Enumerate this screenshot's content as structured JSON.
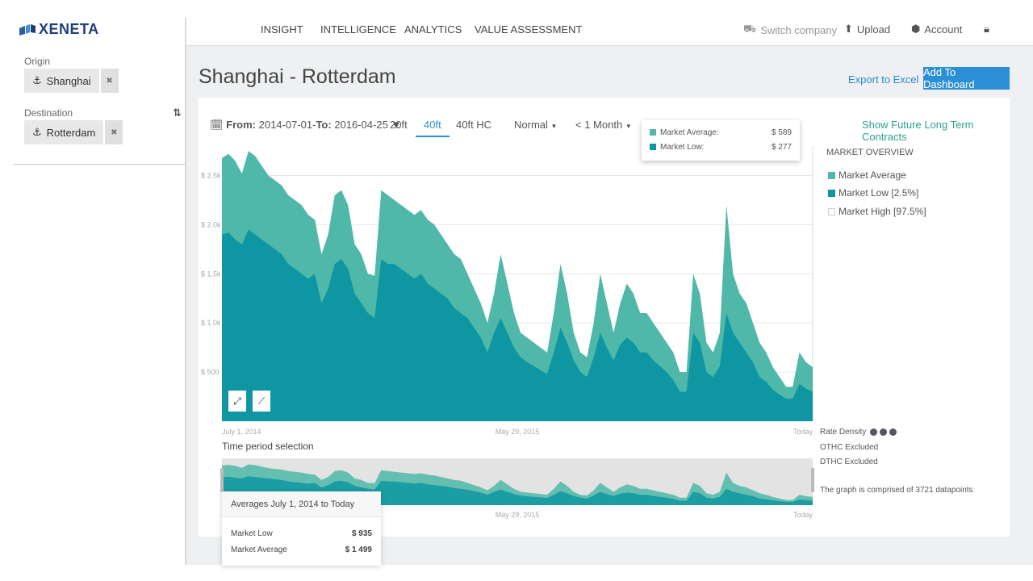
{
  "app": {
    "brand": "XENETA"
  },
  "sidebar": {
    "origin_label": "Origin",
    "origin_value": "Shanghai",
    "destination_label": "Destination",
    "destination_value": "Rotterdam"
  },
  "nav": {
    "items": [
      "INSIGHT",
      "INTELLIGENCE",
      "ANALYTICS",
      "VALUE ASSESSMENT"
    ],
    "switch_company": "Switch company",
    "upload": "Upload",
    "account": "Account"
  },
  "header": {
    "title": "Shanghai - Rotterdam",
    "export_label": "Export to Excel",
    "dashboard_label": "Add To Dashboard"
  },
  "controls": {
    "from_label": "From:",
    "from_value": "2014-07-01-",
    "to_label": "To:",
    "to_value": "2016-04-25",
    "containers": [
      "20ft",
      "40ft",
      "40ft HC"
    ],
    "active_container": "40ft",
    "mode": "Normal",
    "period": "< 1 Month",
    "future_contracts": "Show Future Long Term Contracts"
  },
  "tooltip": {
    "avg_label": "Market Average:",
    "avg_value": "$ 589",
    "low_label": "Market Low:",
    "low_value": "$ 277"
  },
  "legend": {
    "title": "MARKET OVERVIEW",
    "items": [
      "Market Average",
      "Market Low [2.5%]",
      "Market High [97.5%]"
    ]
  },
  "notes": {
    "rate_density": "Rate Density",
    "othc": "OTHC Excluded",
    "dthc": "DTHC Excluded",
    "datapoints": "The graph is comprised of 3721 datapoints"
  },
  "period_selection": {
    "label": "Time period selection"
  },
  "averages": {
    "title": "Averages July 1, 2014 to Today",
    "low_label": "Market Low",
    "low_value": "$ 935",
    "avg_label": "Market Average",
    "avg_value": "$ 1 499"
  },
  "colors": {
    "avg": "#4fb8a8",
    "low": "#0e97a2",
    "brand": "#1f3f7a",
    "accent": "#2b8fd6"
  },
  "chart_data": {
    "type": "area",
    "title": "",
    "xlabel": "",
    "ylabel": "",
    "x_ticks": [
      "July 1, 2014",
      "May 29, 2015",
      "Today"
    ],
    "y_ticks": [
      "$ 500",
      "$ 1.0k",
      "$ 1.5k",
      "$ 2.0k",
      "$ 2.5k"
    ],
    "ylim": [
      0,
      2800
    ],
    "legend_position": "right",
    "series": [
      {
        "name": "Market Average",
        "values": [
          2680,
          2720,
          2650,
          2520,
          2750,
          2700,
          2600,
          2500,
          2450,
          2400,
          2300,
          2250,
          2200,
          2100,
          2050,
          1700,
          1900,
          2300,
          2350,
          2200,
          1800,
          1700,
          1500,
          1480,
          2350,
          2300,
          2250,
          2200,
          2150,
          2100,
          2150,
          2050,
          2000,
          1900,
          1800,
          1700,
          1650,
          1500,
          1350,
          1200,
          1000,
          1300,
          1700,
          1400,
          1100,
          900,
          850,
          800,
          750,
          700,
          1100,
          1600,
          1300,
          900,
          700,
          650,
          1000,
          1500,
          1200,
          900,
          1200,
          1400,
          1300,
          1100,
          1100,
          1000,
          900,
          800,
          700,
          500,
          500,
          1500,
          1300,
          800,
          700,
          900,
          2200,
          1500,
          1300,
          1200,
          1000,
          800,
          700,
          550,
          450,
          350,
          350,
          700,
          600,
          550
        ]
      },
      {
        "name": "Market Low [2.5%]",
        "values": [
          1900,
          1920,
          1850,
          1800,
          1950,
          1900,
          1850,
          1800,
          1750,
          1700,
          1600,
          1550,
          1500,
          1450,
          1500,
          1200,
          1350,
          1600,
          1650,
          1550,
          1300,
          1200,
          1100,
          1050,
          1650,
          1600,
          1600,
          1550,
          1500,
          1450,
          1500,
          1400,
          1350,
          1300,
          1250,
          1150,
          1100,
          1050,
          950,
          850,
          700,
          900,
          1050,
          900,
          750,
          650,
          600,
          560,
          520,
          480,
          700,
          950,
          800,
          620,
          500,
          450,
          650,
          900,
          750,
          620,
          780,
          850,
          800,
          700,
          700,
          620,
          560,
          500,
          420,
          300,
          300,
          900,
          800,
          500,
          450,
          560,
          1100,
          900,
          800,
          700,
          600,
          450,
          400,
          320,
          270,
          230,
          230,
          380,
          330,
          300
        ]
      }
    ]
  }
}
